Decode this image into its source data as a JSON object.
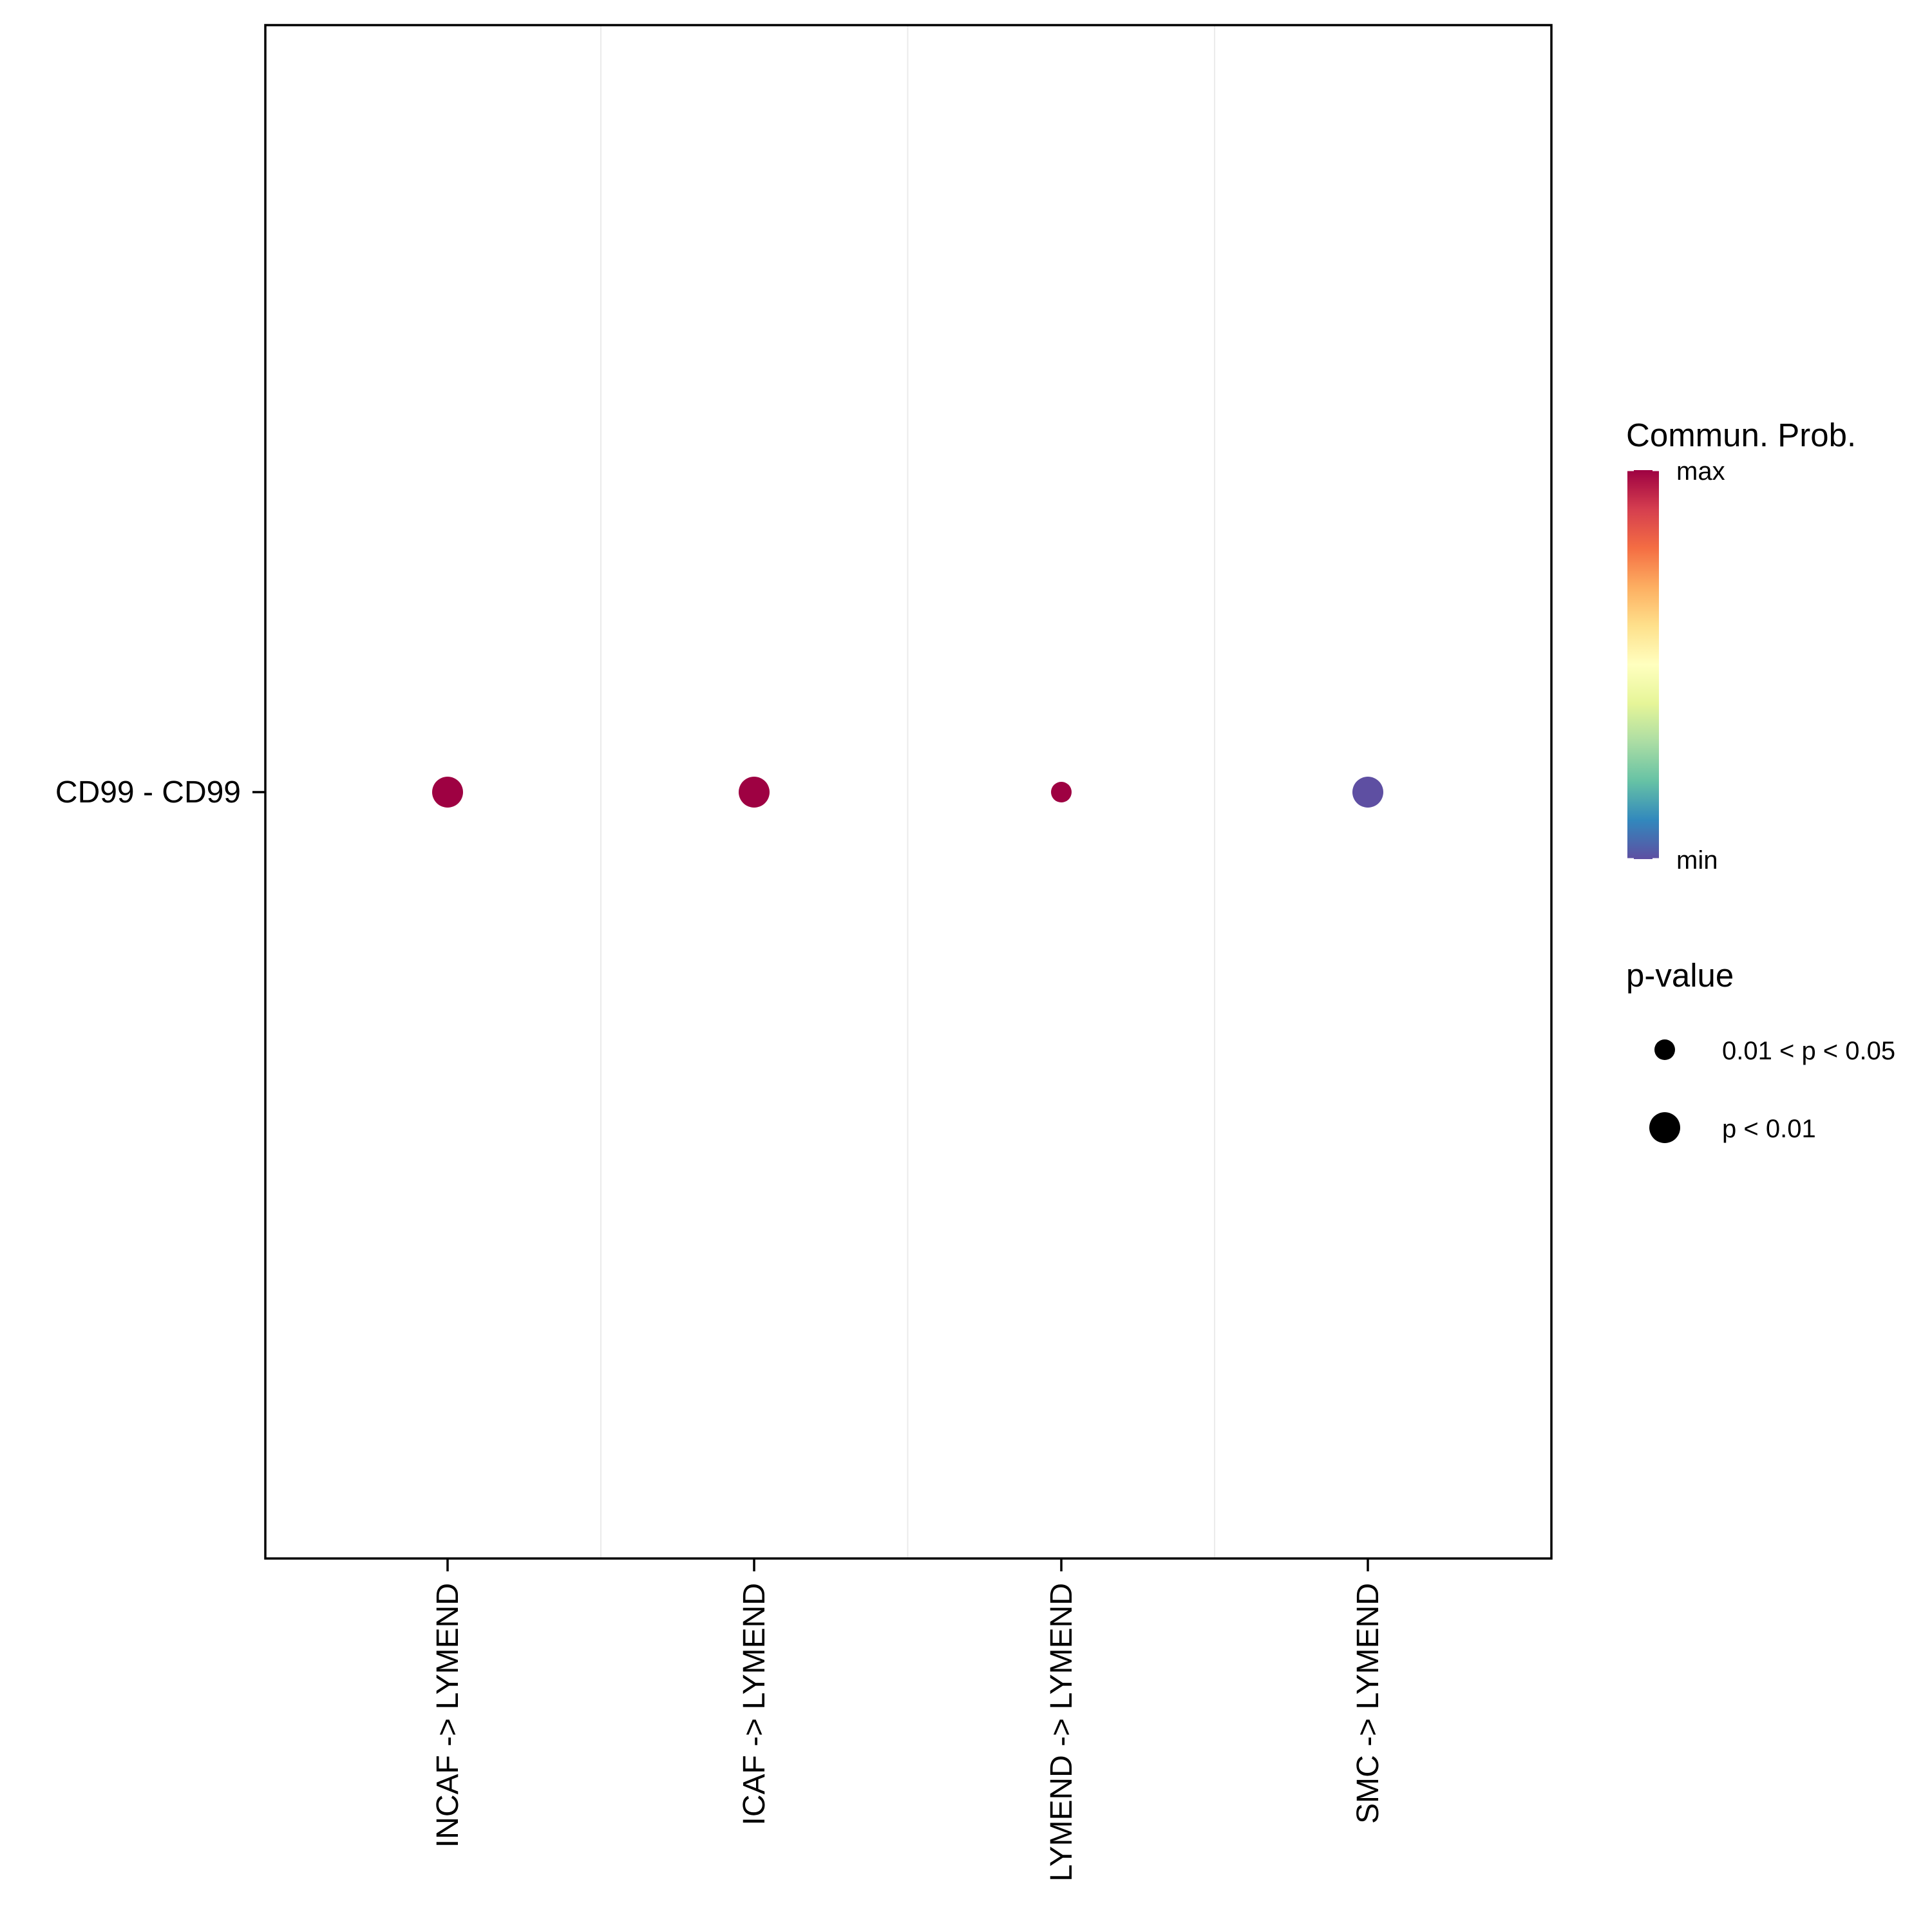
{
  "chart_data": {
    "type": "scatter",
    "subtype": "dot-plot",
    "title": "",
    "xlabel": "",
    "ylabel": "",
    "categories": [
      "INCAF -> LYMEND",
      "ICAF -> LYMEND",
      "LYMEND -> LYMEND",
      "SMC -> LYMEND"
    ],
    "rows": [
      "CD99 - CD99"
    ],
    "points": [
      {
        "x": "INCAF -> LYMEND",
        "y": "CD99 - CD99",
        "prob": 1.0,
        "pvalue": "p < 0.01",
        "color": "#9E0142"
      },
      {
        "x": "ICAF -> LYMEND",
        "y": "CD99 - CD99",
        "prob": 1.0,
        "pvalue": "p < 0.01",
        "color": "#9E0142"
      },
      {
        "x": "LYMEND -> LYMEND",
        "y": "CD99 - CD99",
        "prob": 1.0,
        "pvalue": "0.01 < p < 0.05",
        "color": "#9E0142"
      },
      {
        "x": "SMC -> LYMEND",
        "y": "CD99 - CD99",
        "prob": 0.0,
        "pvalue": "p < 0.01",
        "color": "#5E4FA2"
      }
    ],
    "color_legend": {
      "title": "Commun. Prob.",
      "max_label": "max",
      "min_label": "min",
      "colors": [
        "#5E4FA2",
        "#3288BD",
        "#66C2A5",
        "#ABDDA4",
        "#E6F598",
        "#FFFFBF",
        "#FEE08B",
        "#FDAE61",
        "#F46D43",
        "#D53E4F",
        "#9E0142"
      ]
    },
    "size_legend": {
      "title": "p-value",
      "entries": [
        {
          "label": "0.01 < p < 0.05",
          "level": "small"
        },
        {
          "label": "p < 0.01",
          "level": "large"
        }
      ]
    },
    "grid": true,
    "legend_position": "right"
  }
}
